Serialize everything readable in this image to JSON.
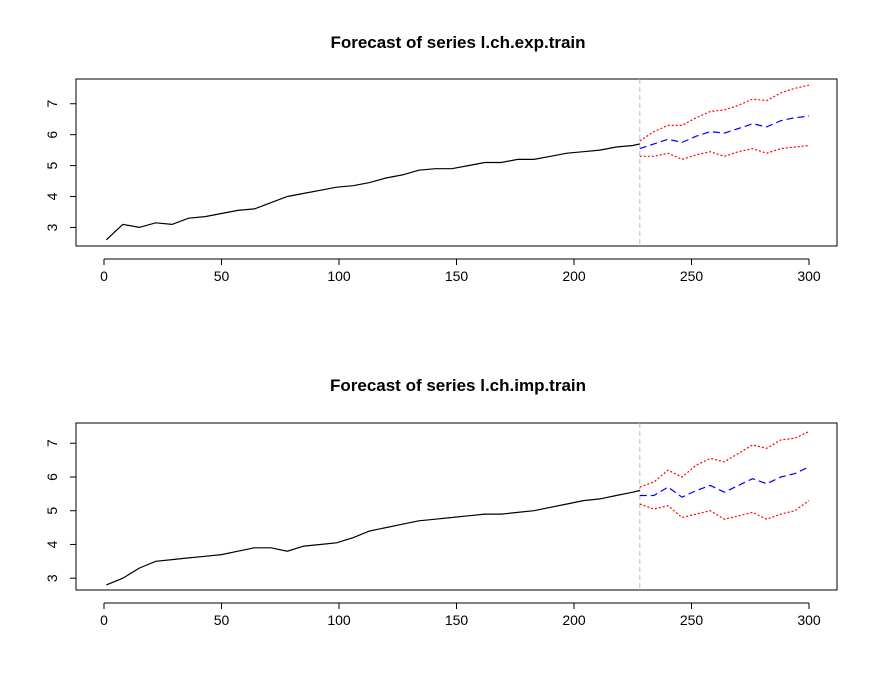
{
  "chart_data": [
    {
      "type": "line",
      "title": "Forecast of series l.ch.exp.train",
      "xlabel": "",
      "ylabel": "",
      "xlim": [
        0,
        300
      ],
      "ylim": [
        2.4,
        7.8
      ],
      "x_ticks": [
        0,
        50,
        100,
        150,
        200,
        250,
        300
      ],
      "y_ticks": [
        3,
        4,
        5,
        6,
        7
      ],
      "forecast_origin": 228,
      "colors": {
        "observed": "#000000",
        "forecast": "#0000ff",
        "bounds": "#ff0000",
        "origin_line": "#bbbbbb"
      },
      "series": [
        {
          "x": [
            1,
            8,
            15,
            22,
            29,
            36,
            43,
            50,
            57,
            64,
            71,
            78,
            85,
            92,
            99,
            106,
            113,
            120,
            127,
            134,
            141,
            148,
            155,
            162,
            169,
            176,
            183,
            190,
            197,
            204,
            211,
            218,
            225,
            228
          ],
          "values": [
            2.6,
            3.1,
            3.0,
            3.15,
            3.1,
            3.3,
            3.35,
            3.45,
            3.55,
            3.6,
            3.8,
            4.0,
            4.1,
            4.2,
            4.3,
            4.35,
            4.45,
            4.6,
            4.7,
            4.85,
            4.9,
            4.9,
            5.0,
            5.1,
            5.1,
            5.2,
            5.2,
            5.3,
            5.4,
            5.45,
            5.5,
            5.6,
            5.65,
            5.7
          ]
        },
        {
          "x": [
            228,
            234,
            240,
            246,
            252,
            258,
            264,
            270,
            276,
            282,
            288,
            294,
            300
          ],
          "values": [
            5.55,
            5.7,
            5.85,
            5.75,
            5.95,
            6.1,
            6.05,
            6.2,
            6.35,
            6.25,
            6.45,
            6.55,
            6.6
          ]
        },
        {
          "x": [
            228,
            234,
            240,
            246,
            252,
            258,
            264,
            270,
            276,
            282,
            288,
            294,
            300
          ],
          "values": [
            5.8,
            6.1,
            6.3,
            6.3,
            6.55,
            6.75,
            6.8,
            6.95,
            7.15,
            7.1,
            7.35,
            7.5,
            7.6
          ]
        },
        {
          "x": [
            228,
            234,
            240,
            246,
            252,
            258,
            264,
            270,
            276,
            282,
            288,
            294,
            300
          ],
          "values": [
            5.3,
            5.3,
            5.4,
            5.2,
            5.35,
            5.45,
            5.3,
            5.45,
            5.55,
            5.4,
            5.55,
            5.6,
            5.65
          ]
        }
      ]
    },
    {
      "type": "line",
      "title": "Forecast of series l.ch.imp.train",
      "xlabel": "",
      "ylabel": "",
      "xlim": [
        0,
        300
      ],
      "ylim": [
        2.65,
        7.6
      ],
      "x_ticks": [
        0,
        50,
        100,
        150,
        200,
        250,
        300
      ],
      "y_ticks": [
        3,
        4,
        5,
        6,
        7
      ],
      "forecast_origin": 228,
      "colors": {
        "observed": "#000000",
        "forecast": "#0000ff",
        "bounds": "#ff0000",
        "origin_line": "#bbbbbb"
      },
      "series": [
        {
          "x": [
            1,
            8,
            15,
            22,
            29,
            36,
            43,
            50,
            57,
            64,
            71,
            78,
            85,
            92,
            99,
            106,
            113,
            120,
            127,
            134,
            141,
            148,
            155,
            162,
            169,
            176,
            183,
            190,
            197,
            204,
            211,
            218,
            225,
            228
          ],
          "values": [
            2.8,
            3.0,
            3.3,
            3.5,
            3.55,
            3.6,
            3.65,
            3.7,
            3.8,
            3.9,
            3.9,
            3.8,
            3.95,
            4.0,
            4.05,
            4.2,
            4.4,
            4.5,
            4.6,
            4.7,
            4.75,
            4.8,
            4.85,
            4.9,
            4.9,
            4.95,
            5.0,
            5.1,
            5.2,
            5.3,
            5.35,
            5.45,
            5.55,
            5.6
          ]
        },
        {
          "x": [
            228,
            234,
            240,
            246,
            252,
            258,
            264,
            270,
            276,
            282,
            288,
            294,
            300
          ],
          "values": [
            5.45,
            5.45,
            5.7,
            5.4,
            5.6,
            5.75,
            5.55,
            5.75,
            5.95,
            5.8,
            6.0,
            6.1,
            6.3
          ]
        },
        {
          "x": [
            228,
            234,
            240,
            246,
            252,
            258,
            264,
            270,
            276,
            282,
            288,
            294,
            300
          ],
          "values": [
            5.7,
            5.85,
            6.2,
            6.0,
            6.35,
            6.55,
            6.45,
            6.7,
            6.95,
            6.85,
            7.1,
            7.15,
            7.35
          ]
        },
        {
          "x": [
            228,
            234,
            240,
            246,
            252,
            258,
            264,
            270,
            276,
            282,
            288,
            294,
            300
          ],
          "values": [
            5.2,
            5.05,
            5.15,
            4.8,
            4.9,
            5.0,
            4.75,
            4.85,
            4.95,
            4.75,
            4.9,
            5.0,
            5.3
          ]
        }
      ]
    }
  ]
}
